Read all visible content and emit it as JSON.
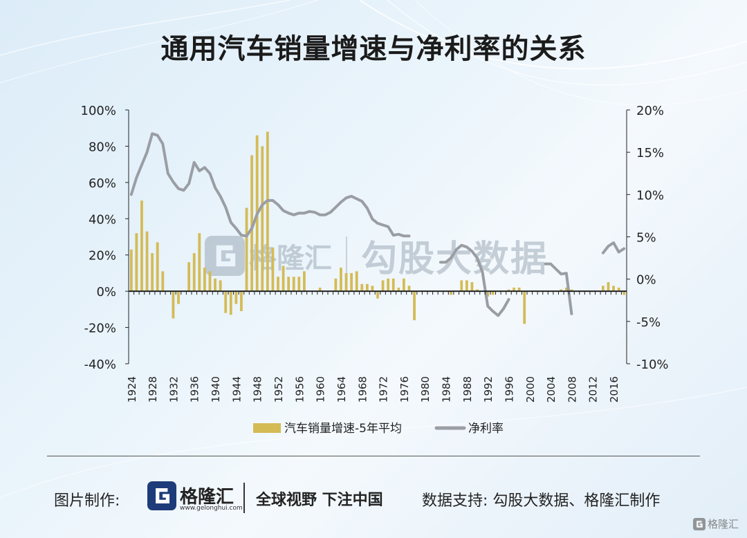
{
  "title": "通用汽车销量增速与净利率的关系",
  "chart_data": {
    "type": "bar+line",
    "left_axis": {
      "min": -40,
      "max": 100,
      "ticks": [
        100,
        80,
        60,
        40,
        20,
        0,
        -20,
        -40
      ],
      "tick_labels": [
        "100%",
        "80%",
        "60%",
        "40%",
        "20%",
        "0%",
        "-20%",
        "-40%"
      ]
    },
    "right_axis": {
      "min": -10,
      "max": 20,
      "ticks": [
        20,
        15,
        10,
        5,
        0,
        -5,
        -10
      ],
      "tick_labels": [
        "20%",
        "15%",
        "10%",
        "5%",
        "0%",
        "-5%",
        "-10%"
      ]
    },
    "x_range": [
      1924,
      2018
    ],
    "x_tick_labels": [
      "1924",
      "1928",
      "1932",
      "1936",
      "1940",
      "1944",
      "1948",
      "1952",
      "1956",
      "1960",
      "1964",
      "1968",
      "1972",
      "1976",
      "1980",
      "1984",
      "1988",
      "1992",
      "1996",
      "2000",
      "2004",
      "2008",
      "2012",
      "2016"
    ],
    "legend": [
      {
        "name": "汽车销量增速-5年平均",
        "color": "#d4bb55"
      },
      {
        "name": "净利率",
        "color": "#9a9ea4"
      }
    ],
    "bars": {
      "name": "汽车销量增速-5年平均",
      "years": [
        1924,
        1925,
        1926,
        1927,
        1928,
        1929,
        1930,
        1931,
        1932,
        1933,
        1934,
        1935,
        1936,
        1937,
        1938,
        1939,
        1940,
        1941,
        1942,
        1943,
        1944,
        1945,
        1946,
        1947,
        1948,
        1949,
        1950,
        1951,
        1952,
        1953,
        1954,
        1955,
        1956,
        1957,
        1958,
        1959,
        1960,
        1961,
        1962,
        1963,
        1964,
        1965,
        1966,
        1967,
        1968,
        1969,
        1970,
        1971,
        1972,
        1973,
        1974,
        1975,
        1976,
        1977,
        1978,
        1979,
        1980,
        1981,
        1982,
        1983,
        1984,
        1985,
        1986,
        1987,
        1988,
        1989,
        1990,
        1991,
        1992,
        1993,
        1994,
        1995,
        1996,
        1997,
        1998,
        1999,
        2000,
        2001,
        2002,
        2003,
        2004,
        2005,
        2006,
        2007,
        2008,
        2009,
        2010,
        2011,
        2012,
        2013,
        2014,
        2015,
        2016,
        2017,
        2018
      ],
      "values": [
        23,
        32,
        50,
        33,
        21,
        27,
        11,
        0,
        -15,
        -7,
        0,
        16,
        21,
        32,
        13,
        11,
        7,
        6,
        -12,
        -13,
        -7,
        -11,
        46,
        75,
        86,
        80,
        88,
        24,
        8,
        14,
        8,
        8,
        8,
        11,
        0,
        0,
        2,
        0,
        0,
        7,
        13,
        10,
        10,
        11,
        4,
        4,
        3,
        -4,
        6,
        7,
        7,
        2,
        7,
        3,
        -16,
        0,
        0,
        0,
        0,
        0,
        0,
        -2,
        0,
        6,
        6,
        5,
        1,
        0,
        -3,
        -2,
        0,
        0,
        1,
        2,
        2,
        -18,
        0,
        0,
        0,
        0,
        0,
        0,
        1,
        2,
        1,
        0,
        0,
        0,
        0,
        0,
        3,
        5,
        3,
        2,
        -2
      ]
    },
    "line": {
      "name": "净利率",
      "segments": [
        {
          "years": [
            1924,
            1925,
            1926,
            1927,
            1928,
            1929,
            1930,
            1931,
            1932,
            1933,
            1934,
            1935,
            1936,
            1937,
            1938,
            1939,
            1940,
            1941,
            1942,
            1943,
            1944,
            1945,
            1946,
            1947,
            1948,
            1949,
            1950,
            1951,
            1952,
            1953,
            1954,
            1955,
            1956,
            1957,
            1958,
            1959,
            1960,
            1961,
            1962,
            1963,
            1964,
            1965,
            1966,
            1967,
            1968,
            1969,
            1970,
            1971,
            1972,
            1973,
            1974,
            1975,
            1976,
            1977
          ],
          "values": [
            10,
            12,
            13.5,
            15,
            17.2,
            17,
            16,
            12.5,
            11.5,
            10.7,
            10.5,
            11.3,
            13.8,
            12.8,
            13.2,
            12.5,
            10.8,
            9.8,
            8.5,
            6.7,
            6,
            5.2,
            5.1,
            6,
            7.7,
            8.8,
            9.3,
            9.3,
            8.8,
            8.1,
            7.8,
            7.6,
            7.8,
            7.8,
            8,
            7.9,
            7.6,
            7.6,
            7.9,
            8.5,
            9.1,
            9.6,
            9.8,
            9.5,
            9.2,
            8.4,
            7.1,
            6.6,
            6.4,
            6.2,
            5.2,
            5.3,
            5.1,
            5.1
          ]
        },
        {
          "years": [
            1983,
            1984,
            1985,
            1986,
            1987,
            1988,
            1989,
            1990,
            1991,
            1992,
            1993,
            1994,
            1995,
            1996
          ],
          "values": [
            2,
            2,
            2.5,
            3.5,
            4,
            3.8,
            3.3,
            2.5,
            0.8,
            -3.2,
            -3.8,
            -4.3,
            -3.5,
            -2.4
          ]
        },
        {
          "years": [
            2003,
            2004,
            2005,
            2006,
            2007,
            2008
          ],
          "values": [
            1.8,
            1.8,
            1.2,
            0.6,
            0.7,
            -4.1
          ]
        },
        {
          "years": [
            2014,
            2015,
            2016,
            2017,
            2018
          ],
          "values": [
            3.1,
            3.9,
            4.3,
            3.2,
            3.6
          ]
        }
      ]
    }
  },
  "watermark": {
    "brand": "格隆汇",
    "text": "勾股大数据"
  },
  "footer": {
    "label": "图片制作:",
    "brand": "格隆汇",
    "url": "www.gelonghui.com",
    "slogan": "全球视野 下注中国",
    "source": "数据支持: 勾股大数据、格隆汇制作"
  },
  "corner_brand": "格隆汇"
}
